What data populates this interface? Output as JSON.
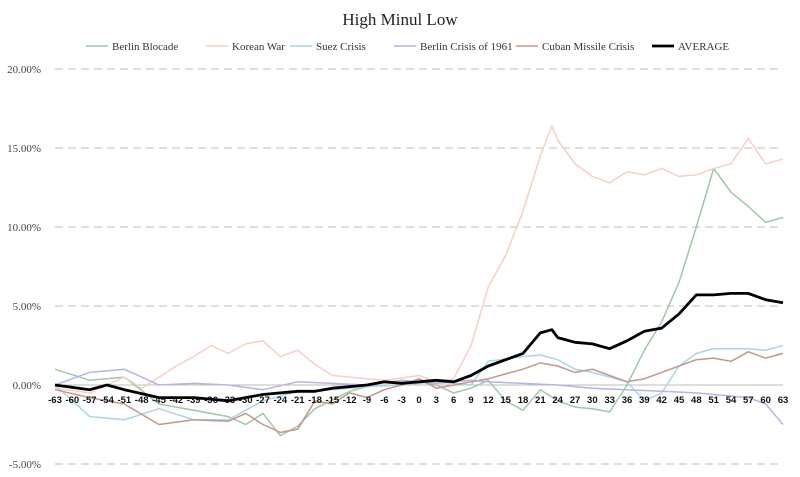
{
  "chart_data": {
    "type": "line",
    "title": "High Minul Low",
    "xlabel": "",
    "ylabel": "",
    "x_start": -63,
    "x_end": 63,
    "x_tick_step": 3,
    "ylim": [
      -0.05,
      0.2
    ],
    "yticks": [
      -0.05,
      0.0,
      0.05,
      0.1,
      0.15,
      0.2
    ],
    "ytick_labels": [
      "-5.00%",
      "0.00%",
      "5.00%",
      "10.00%",
      "15.00%",
      "20.00%"
    ],
    "grid": true,
    "legend_position": "top",
    "series": [
      {
        "name": "Berlin Blocade",
        "color": "#9dc9a6",
        "width": 1.5,
        "points": [
          [
            -63,
            0.01
          ],
          [
            -57,
            0.003
          ],
          [
            -51,
            0.005
          ],
          [
            -45,
            -0.012
          ],
          [
            -39,
            -0.016
          ],
          [
            -33,
            -0.02
          ],
          [
            -30,
            -0.025
          ],
          [
            -27,
            -0.018
          ],
          [
            -24,
            -0.032
          ],
          [
            -21,
            -0.026
          ],
          [
            -18,
            -0.015
          ],
          [
            -12,
            -0.004
          ],
          [
            -6,
            0.002
          ],
          [
            0,
            0.002
          ],
          [
            3,
            0.0
          ],
          [
            6,
            -0.005
          ],
          [
            9,
            -0.002
          ],
          [
            12,
            0.003
          ],
          [
            15,
            -0.01
          ],
          [
            18,
            -0.016
          ],
          [
            21,
            -0.003
          ],
          [
            24,
            -0.01
          ],
          [
            27,
            -0.014
          ],
          [
            30,
            -0.015
          ],
          [
            33,
            -0.017
          ],
          [
            36,
            0.0
          ],
          [
            39,
            0.022
          ],
          [
            42,
            0.04
          ],
          [
            45,
            0.065
          ],
          [
            48,
            0.1
          ],
          [
            51,
            0.137
          ],
          [
            54,
            0.122
          ],
          [
            57,
            0.113
          ],
          [
            60,
            0.103
          ],
          [
            63,
            0.106
          ]
        ]
      },
      {
        "name": "Korean War",
        "color": "#f8cfc4",
        "width": 1.5,
        "points": [
          [
            -63,
            -0.002
          ],
          [
            -57,
            -0.005
          ],
          [
            -51,
            0.005
          ],
          [
            -48,
            -0.002
          ],
          [
            -45,
            0.005
          ],
          [
            -42,
            0.012
          ],
          [
            -39,
            0.018
          ],
          [
            -36,
            0.025
          ],
          [
            -33,
            0.02
          ],
          [
            -30,
            0.026
          ],
          [
            -27,
            0.028
          ],
          [
            -24,
            0.018
          ],
          [
            -21,
            0.022
          ],
          [
            -18,
            0.013
          ],
          [
            -15,
            0.006
          ],
          [
            -12,
            0.005
          ],
          [
            -9,
            0.004
          ],
          [
            -6,
            0.003
          ],
          [
            0,
            0.006
          ],
          [
            3,
            0.002
          ],
          [
            6,
            0.004
          ],
          [
            9,
            0.025
          ],
          [
            12,
            0.062
          ],
          [
            15,
            0.082
          ],
          [
            18,
            0.11
          ],
          [
            21,
            0.145
          ],
          [
            23,
            0.164
          ],
          [
            24,
            0.155
          ],
          [
            27,
            0.14
          ],
          [
            30,
            0.132
          ],
          [
            33,
            0.128
          ],
          [
            36,
            0.135
          ],
          [
            39,
            0.133
          ],
          [
            42,
            0.137
          ],
          [
            45,
            0.132
          ],
          [
            48,
            0.133
          ],
          [
            51,
            0.137
          ],
          [
            54,
            0.14
          ],
          [
            57,
            0.156
          ],
          [
            60,
            0.14
          ],
          [
            63,
            0.143
          ]
        ]
      },
      {
        "name": "Suez Crisis",
        "color": "#a8d6e8",
        "width": 1.5,
        "points": [
          [
            -63,
            0.0
          ],
          [
            -57,
            -0.02
          ],
          [
            -51,
            -0.022
          ],
          [
            -45,
            -0.015
          ],
          [
            -39,
            -0.022
          ],
          [
            -33,
            -0.022
          ],
          [
            -27,
            -0.01
          ],
          [
            -21,
            -0.004
          ],
          [
            -15,
            -0.003
          ],
          [
            -9,
            -0.001
          ],
          [
            -3,
            0.0
          ],
          [
            3,
            0.002
          ],
          [
            9,
            0.0
          ],
          [
            12,
            0.015
          ],
          [
            18,
            0.018
          ],
          [
            21,
            0.019
          ],
          [
            24,
            0.016
          ],
          [
            27,
            0.01
          ],
          [
            30,
            0.008
          ],
          [
            33,
            0.005
          ],
          [
            36,
            0.002
          ],
          [
            39,
            -0.01
          ],
          [
            42,
            -0.005
          ],
          [
            45,
            0.012
          ],
          [
            48,
            0.02
          ],
          [
            51,
            0.023
          ],
          [
            57,
            0.023
          ],
          [
            60,
            0.022
          ],
          [
            63,
            0.025
          ]
        ]
      },
      {
        "name": "Berlin Crisis of 1961",
        "color": "#b4b4e6",
        "width": 1.5,
        "points": [
          [
            -63,
            0.0
          ],
          [
            -57,
            0.008
          ],
          [
            -51,
            0.01
          ],
          [
            -48,
            0.005
          ],
          [
            -45,
            0.0
          ],
          [
            -39,
            0.001
          ],
          [
            -33,
            0.0
          ],
          [
            -27,
            -0.003
          ],
          [
            -21,
            0.002
          ],
          [
            -15,
            0.001
          ],
          [
            -9,
            0.0
          ],
          [
            -3,
            0.003
          ],
          [
            3,
            0.001
          ],
          [
            9,
            0.003
          ],
          [
            12,
            0.002
          ],
          [
            18,
            0.001
          ],
          [
            24,
            0.0
          ],
          [
            30,
            -0.002
          ],
          [
            36,
            -0.003
          ],
          [
            42,
            -0.004
          ],
          [
            48,
            -0.005
          ],
          [
            54,
            -0.007
          ],
          [
            57,
            -0.008
          ],
          [
            60,
            -0.012
          ],
          [
            63,
            -0.025
          ]
        ]
      },
      {
        "name": "Cuban Missile Crisis",
        "color": "#c6968a",
        "width": 1.5,
        "points": [
          [
            -63,
            -0.003
          ],
          [
            -57,
            -0.008
          ],
          [
            -51,
            -0.012
          ],
          [
            -45,
            -0.025
          ],
          [
            -39,
            -0.022
          ],
          [
            -33,
            -0.023
          ],
          [
            -30,
            -0.018
          ],
          [
            -27,
            -0.025
          ],
          [
            -24,
            -0.03
          ],
          [
            -21,
            -0.028
          ],
          [
            -18,
            -0.01
          ],
          [
            -15,
            -0.012
          ],
          [
            -12,
            -0.005
          ],
          [
            -9,
            -0.008
          ],
          [
            -6,
            -0.003
          ],
          [
            -3,
            0.0
          ],
          [
            0,
            0.004
          ],
          [
            3,
            -0.002
          ],
          [
            6,
            0.0
          ],
          [
            9,
            0.002
          ],
          [
            12,
            0.004
          ],
          [
            15,
            0.007
          ],
          [
            18,
            0.01
          ],
          [
            21,
            0.014
          ],
          [
            24,
            0.012
          ],
          [
            27,
            0.008
          ],
          [
            30,
            0.01
          ],
          [
            33,
            0.006
          ],
          [
            36,
            0.002
          ],
          [
            39,
            0.004
          ],
          [
            42,
            0.008
          ],
          [
            45,
            0.012
          ],
          [
            48,
            0.016
          ],
          [
            51,
            0.017
          ],
          [
            54,
            0.015
          ],
          [
            57,
            0.021
          ],
          [
            60,
            0.017
          ],
          [
            63,
            0.02
          ]
        ]
      },
      {
        "name": "AVERAGE",
        "color": "#000000",
        "width": 2.8,
        "points": [
          [
            -63,
            0.0
          ],
          [
            -57,
            -0.003
          ],
          [
            -54,
            0.0
          ],
          [
            -51,
            -0.003
          ],
          [
            -45,
            -0.008
          ],
          [
            -39,
            -0.008
          ],
          [
            -33,
            -0.01
          ],
          [
            -27,
            -0.006
          ],
          [
            -21,
            -0.004
          ],
          [
            -18,
            -0.004
          ],
          [
            -15,
            -0.002
          ],
          [
            -12,
            -0.001
          ],
          [
            -9,
            0.0
          ],
          [
            -6,
            0.002
          ],
          [
            -3,
            0.001
          ],
          [
            0,
            0.002
          ],
          [
            3,
            0.003
          ],
          [
            6,
            0.002
          ],
          [
            9,
            0.006
          ],
          [
            12,
            0.012
          ],
          [
            15,
            0.016
          ],
          [
            18,
            0.02
          ],
          [
            21,
            0.033
          ],
          [
            23,
            0.035
          ],
          [
            24,
            0.03
          ],
          [
            27,
            0.027
          ],
          [
            30,
            0.026
          ],
          [
            33,
            0.023
          ],
          [
            36,
            0.028
          ],
          [
            39,
            0.034
          ],
          [
            42,
            0.036
          ],
          [
            45,
            0.045
          ],
          [
            48,
            0.057
          ],
          [
            51,
            0.057
          ],
          [
            54,
            0.058
          ],
          [
            57,
            0.058
          ],
          [
            60,
            0.054
          ],
          [
            63,
            0.052
          ]
        ]
      }
    ]
  }
}
